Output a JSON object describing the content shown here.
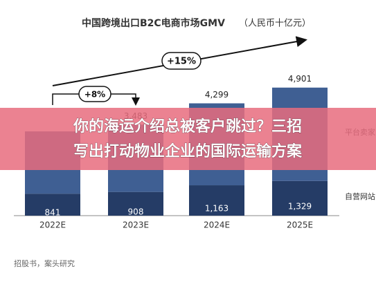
{
  "chart_data": {
    "type": "stacked_bar",
    "title": "中国跨境出口B2C电商市场GMV",
    "subtitle": "（人民币十亿元）",
    "categories": [
      "2022E",
      "2023E",
      "2024E",
      "2025E"
    ],
    "series": [
      {
        "name": "自营网站",
        "color": "#253c66",
        "values": [
          841,
          908,
          1163,
          1329
        ],
        "value_labels": [
          "841",
          "908",
          "1,163",
          "1,329"
        ]
      },
      {
        "name": "平台卖家",
        "color": "#3f5f93",
        "values": [
          2384,
          2575,
          3136,
          3572
        ]
      }
    ],
    "totals": [
      null,
      3483,
      4299,
      4901
    ],
    "totals_labels": [
      null,
      "3,483",
      "4,299",
      "4,901"
    ],
    "ylim": [
      0,
      5000
    ],
    "annotations": [
      "+15%",
      "+8%"
    ],
    "source": "招股书，案头研究"
  },
  "banner": {
    "lines": [
      "你的海运介绍总被客户跳过？三招",
      "写出打动物业企业的国际运输方案"
    ]
  }
}
